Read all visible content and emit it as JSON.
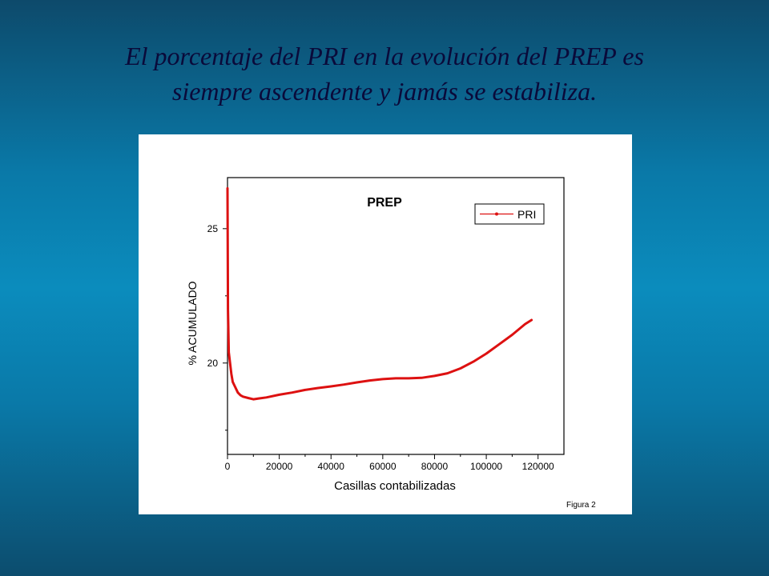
{
  "slide": {
    "title_line1": "El porcentaje del PRI en la evolución del PREP es",
    "title_line2": "siempre ascendente y jamás se estabiliza."
  },
  "figure_caption": "Figura 2",
  "chart_data": {
    "type": "line",
    "title": "PREP",
    "xlabel": "Casillas contabilizadas",
    "ylabel": "% ACUMULADO",
    "xlim": [
      0,
      130000
    ],
    "ylim": [
      16.6,
      26.9
    ],
    "xticks": [
      0,
      20000,
      40000,
      60000,
      80000,
      100000,
      120000
    ],
    "xtick_labels": [
      "0",
      "20000",
      "40000",
      "60000",
      "80000",
      "100000",
      "120000"
    ],
    "yticks": [
      20,
      25
    ],
    "ytick_labels": [
      "20",
      "25"
    ],
    "legend": {
      "position": "top-right",
      "entries": [
        "PRI"
      ]
    },
    "grid": false,
    "series": [
      {
        "name": "PRI",
        "color": "#dd1111",
        "x": [
          0,
          200,
          500,
          1000,
          1500,
          2000,
          3000,
          4000,
          5000,
          6000,
          8000,
          10000,
          12000,
          15000,
          20000,
          25000,
          30000,
          35000,
          40000,
          45000,
          50000,
          55000,
          60000,
          65000,
          70000,
          75000,
          80000,
          85000,
          90000,
          95000,
          100000,
          105000,
          110000,
          115000,
          117500
        ],
        "y": [
          26.5,
          22.0,
          20.4,
          20.0,
          19.6,
          19.3,
          19.1,
          18.9,
          18.8,
          18.75,
          18.7,
          18.65,
          18.68,
          18.72,
          18.82,
          18.9,
          19.0,
          19.07,
          19.13,
          19.2,
          19.28,
          19.35,
          19.4,
          19.43,
          19.43,
          19.45,
          19.52,
          19.62,
          19.8,
          20.05,
          20.35,
          20.7,
          21.05,
          21.45,
          21.6
        ]
      }
    ]
  }
}
